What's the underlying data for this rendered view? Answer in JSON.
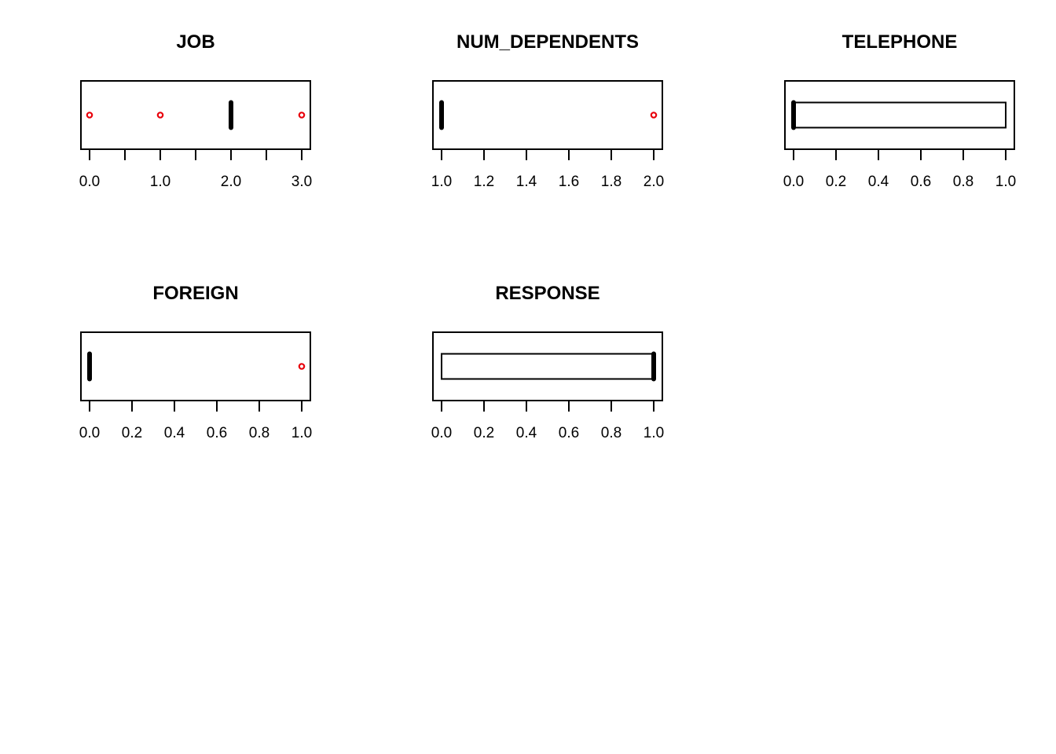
{
  "chart_data": [
    {
      "type": "boxplot",
      "title": "JOB",
      "xlim": [
        0,
        3
      ],
      "ticks": [
        0,
        0.5,
        1,
        1.5,
        2,
        2.5,
        3
      ],
      "tick_labels": [
        "0.0",
        "",
        "1.0",
        "",
        "2.0",
        "",
        "3.0"
      ],
      "box": {
        "lower_hinge": 2,
        "median": 2,
        "upper_hinge": 2
      },
      "whiskers": [
        2,
        2
      ],
      "outliers": [
        0,
        1,
        3
      ]
    },
    {
      "type": "boxplot",
      "title": "NUM_DEPENDENTS",
      "xlim": [
        1,
        2
      ],
      "ticks": [
        1,
        1.2,
        1.4,
        1.6,
        1.8,
        2
      ],
      "tick_labels": [
        "1.0",
        "1.2",
        "1.4",
        "1.6",
        "1.8",
        "2.0"
      ],
      "box": {
        "lower_hinge": 1,
        "median": 1,
        "upper_hinge": 1
      },
      "whiskers": [
        1,
        1
      ],
      "outliers": [
        2
      ]
    },
    {
      "type": "boxplot",
      "title": "TELEPHONE",
      "xlim": [
        0,
        1
      ],
      "ticks": [
        0,
        0.2,
        0.4,
        0.6,
        0.8,
        1
      ],
      "tick_labels": [
        "0.0",
        "0.2",
        "0.4",
        "0.6",
        "0.8",
        "1.0"
      ],
      "box": {
        "lower_hinge": 0,
        "median": 0,
        "upper_hinge": 1
      },
      "whiskers": [
        0,
        1
      ],
      "outliers": []
    },
    {
      "type": "boxplot",
      "title": "FOREIGN",
      "xlim": [
        0,
        1
      ],
      "ticks": [
        0,
        0.2,
        0.4,
        0.6,
        0.8,
        1
      ],
      "tick_labels": [
        "0.0",
        "0.2",
        "0.4",
        "0.6",
        "0.8",
        "1.0"
      ],
      "box": {
        "lower_hinge": 0,
        "median": 0,
        "upper_hinge": 0
      },
      "whiskers": [
        0,
        0
      ],
      "outliers": [
        1
      ]
    },
    {
      "type": "boxplot",
      "title": "RESPONSE",
      "xlim": [
        0,
        1
      ],
      "ticks": [
        0,
        0.2,
        0.4,
        0.6,
        0.8,
        1
      ],
      "tick_labels": [
        "0.0",
        "0.2",
        "0.4",
        "0.6",
        "0.8",
        "1.0"
      ],
      "box": {
        "lower_hinge": 0,
        "median": 1,
        "upper_hinge": 1
      },
      "whiskers": [
        0,
        1
      ],
      "outliers": []
    }
  ],
  "colors": {
    "outlier": "#e8000b",
    "box_stroke": "#000000",
    "background": "#ffffff"
  }
}
